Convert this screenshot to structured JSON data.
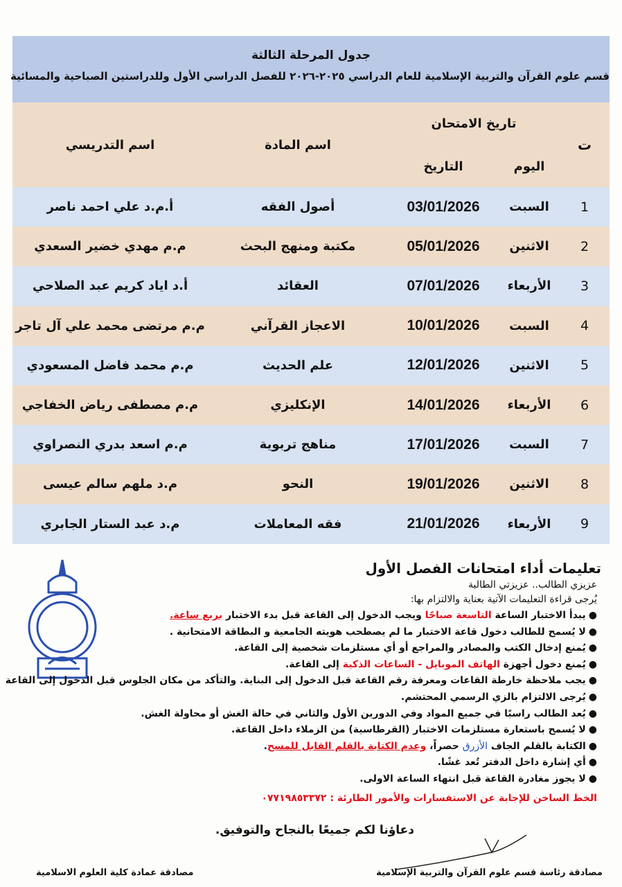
{
  "header": {
    "title": "جدول المرحلة الثالثة",
    "subtitle": "قسم علوم القرآن والتربية الإسلامية للعام الدراسي ٢٠٢٥-٢٠٢٦ للفصل الدراسي الأول وللدراستين الصباحية والمسائية"
  },
  "table": {
    "columns": {
      "number": "ت",
      "exam_date": "تاريخ الامتحان",
      "day": "اليوم",
      "date": "التاريخ",
      "subject": "اسم المادة",
      "teacher": "اسم التدريسي"
    },
    "rows": [
      [
        "1",
        "السبت",
        "03/01/2026",
        "أصول الفقه",
        "أ.م.د علي احمد ناصر"
      ],
      [
        "2",
        "الاثنين",
        "05/01/2026",
        "مكتبة ومنهج البحث",
        "م.م مهدي خضير السعدي"
      ],
      [
        "3",
        "الأربعاء",
        "07/01/2026",
        "العقائد",
        "أ.د اياد كريم عبد الصلاحي"
      ],
      [
        "4",
        "السبت",
        "10/01/2026",
        "الاعجاز القرآني",
        "م.م مرتضى محمد علي آل تاجر"
      ],
      [
        "5",
        "الاثنين",
        "12/01/2026",
        "علم الحديث",
        "م.م محمد فاضل المسعودي"
      ],
      [
        "6",
        "الأربعاء",
        "14/01/2026",
        "الإنكليزي",
        "م.م مصطفى رياض الخفاجي"
      ],
      [
        "7",
        "السبت",
        "17/01/2026",
        "مناهج تربوية",
        "م.م اسعد بدري النصراوي"
      ],
      [
        "8",
        "الاثنين",
        "19/01/2026",
        "النحو",
        "م.د ملهم سالم عيسى"
      ],
      [
        "9",
        "الأربعاء",
        "21/01/2026",
        "فقه المعاملات",
        "م.د عبد الستار الجابري"
      ]
    ]
  },
  "instructions": {
    "title": "تعليمات أداء امتحانات الفصل الأول",
    "greeting": "عزيزي الطالب.. عزيزتي الطالبة",
    "intro": "يُرجى قراءة التعليمات الآتية بعناية والالتزام بها:",
    "items": [
      [
        "يبدأ الاختبار الساعة ",
        "التاسعة صباحًا",
        " ويجب الدخول إلى القاعة قبل بدء الاختبار ",
        "بربع ساعة."
      ],
      [
        "لا يُسمح للطالب دخول قاعة الاختبار ما لم يصطحب هويته الجامعية و البطاقة الامتحانية ."
      ],
      [
        "يُمنع إدخال الكتب والمصادر والمراجع أو أي مستلزمات شخصية إلى القاعة."
      ],
      [
        "يُمنع دخول أجهزة ",
        "الهاتف الموبايل - الساعات الذكية",
        " إلى القاعة."
      ],
      [
        "يجب ملاحظة خارطة القاعات ومعرفة رقم القاعة قبل الدخول إلى البناية. والتأكد من مكان الجلوس قبل الدخول إلى القاعة"
      ],
      [
        "يُرجى الالتزام بالزي الرسمي المحتشم."
      ],
      [
        "يُعد الطالب راسبًا في جميع المواد وفي الدورين الأول والثاني في حالة الغش أو محاولة الغش."
      ],
      [
        "لا يُسمح باستعارة مستلزمات الاختبار (القرطاسية) من الزملاء داخل القاعة."
      ],
      [
        "الكتابة بالقلم الجاف ",
        "الأزرق",
        " حصراً، ",
        "وعدم الكتابة بالقلم القابل للمسح",
        "."
      ],
      [
        "أي إشارة داخل الدفتر تُعد غشًا."
      ],
      [
        "لا يجوز مغادرة القاعة قبل انتهاء الساعة الاولى."
      ]
    ],
    "hotline": "الخط الساخن للإجابة عن الاستفسارات والأمور الطارئة : ٠٧٧١٩٨٥٣٣٧٢",
    "closing": "دعاؤنا لكم جميعًا بالنجاح والتوفيق."
  },
  "signatures": {
    "right": "مصادقة رئاسة قسم علوم القرآن والتربية الإسلامية",
    "left": "مصادقة عمادة كلية العلوم الاسلامية"
  }
}
